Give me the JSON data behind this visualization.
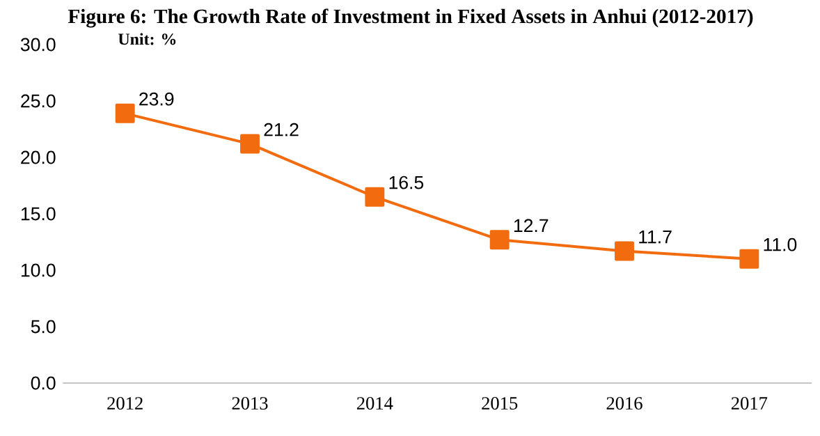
{
  "chart_data": {
    "type": "line",
    "title": "Figure 6: The Growth Rate of Investment in Fixed Assets in Anhui (2012-2017)",
    "annotations": [
      "Unit:  %"
    ],
    "categories": [
      "2012",
      "2013",
      "2014",
      "2015",
      "2016",
      "2017"
    ],
    "values": [
      23.9,
      21.2,
      16.5,
      12.7,
      11.7,
      11.0
    ],
    "value_labels": [
      "23.9",
      "21.2",
      "16.5",
      "12.7",
      "11.7",
      "11.0"
    ],
    "color": "#f26c0f",
    "marker": "square",
    "line_style": "solid",
    "ylim": [
      0,
      30
    ],
    "yticks": [
      {
        "value": 0,
        "label": "0.0"
      },
      {
        "value": 5,
        "label": "5.0"
      },
      {
        "value": 10,
        "label": "10.0"
      },
      {
        "value": 15,
        "label": "15.0"
      },
      {
        "value": 20,
        "label": "20.0"
      },
      {
        "value": 25,
        "label": "25.0"
      },
      {
        "value": 30,
        "label": "30.0"
      }
    ],
    "grid": false
  }
}
